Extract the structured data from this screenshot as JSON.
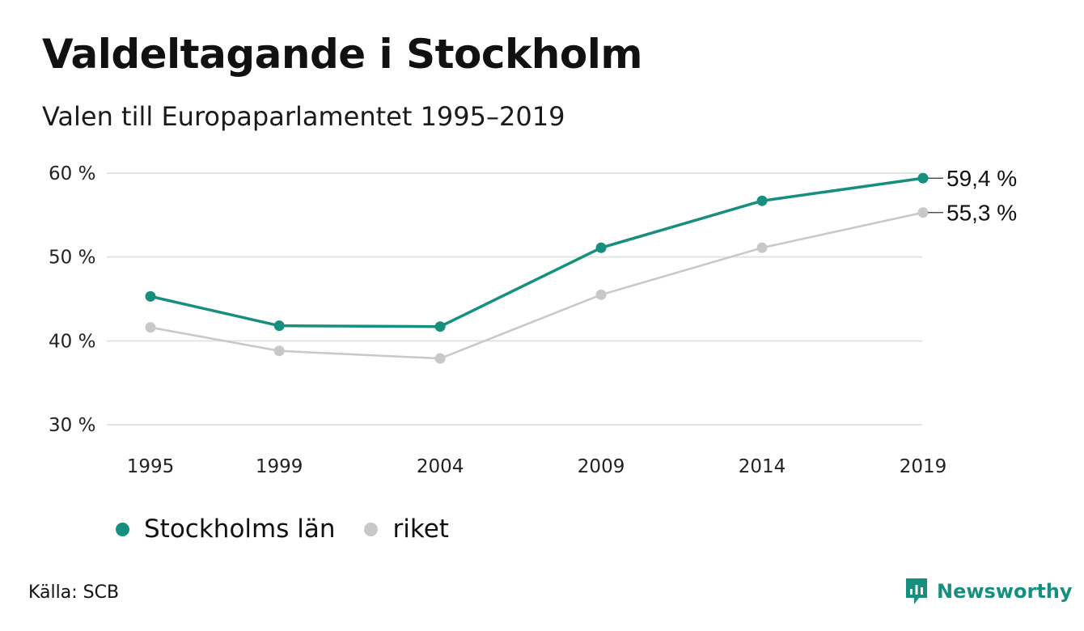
{
  "header": {
    "title": "Valdeltagande i Stockholm",
    "subtitle": "Valen till Europaparlamentet 1995–2019"
  },
  "chart_data": {
    "type": "line",
    "x": [
      "1995",
      "1999",
      "2004",
      "2009",
      "2014",
      "2019"
    ],
    "series": [
      {
        "name": "Stockholms län",
        "values": [
          45.3,
          41.8,
          41.7,
          51.1,
          56.7,
          59.4
        ],
        "color": "#178f7f",
        "end_label": "59,4 %"
      },
      {
        "name": "riket",
        "values": [
          41.6,
          38.8,
          37.9,
          45.5,
          51.1,
          55.3
        ],
        "color": "#c8c8c8",
        "end_label": "55,3 %"
      }
    ],
    "y_ticks": [
      60,
      50,
      40,
      30
    ],
    "y_tick_labels": [
      "60 %",
      "50 %",
      "40 %",
      "30 %"
    ],
    "ylim": [
      30,
      60
    ],
    "grid": true,
    "legend_position": "bottom-left"
  },
  "source": "Källa: SCB",
  "brand": {
    "name": "Newsworthy",
    "icon": "newsworthy-logo-icon",
    "color": "#178f7f"
  }
}
